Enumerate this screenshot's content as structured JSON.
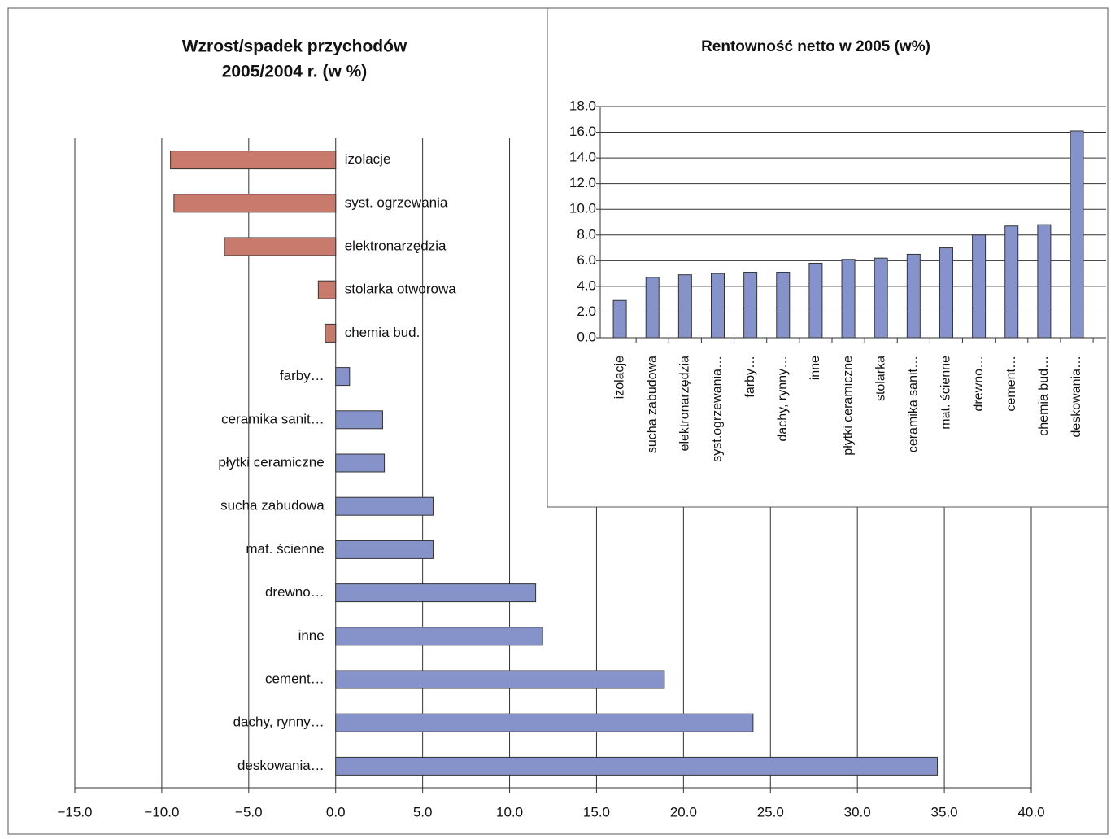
{
  "chart_data": [
    {
      "type": "hbar",
      "title": [
        "Wzrost/spadek przychodów",
        "2005/2004 r. (w %)"
      ],
      "categories": [
        "izolacje",
        "syst. ogrzewania",
        "elektronarzędzia",
        "stolarka otworowa",
        "chemia bud.",
        "farby…",
        "ceramika sanit…",
        "płytki ceramiczne",
        "sucha zabudowa",
        "mat. ścienne",
        "drewno…",
        "inne",
        "cement…",
        "dachy, rynny…",
        "deskowania…"
      ],
      "values": [
        -9.5,
        -9.3,
        -6.4,
        -1.0,
        -0.6,
        0.8,
        2.7,
        2.8,
        5.6,
        5.6,
        11.5,
        11.9,
        18.9,
        24.0,
        34.6
      ],
      "color": "#8693cb",
      "negative_color": "#c87a6c",
      "xlim": [
        -15,
        40
      ],
      "xticks": [
        {
          "value": -15,
          "label": "−15.0"
        },
        {
          "value": -10,
          "label": "−10.0"
        },
        {
          "value": -5,
          "label": "−5.0"
        },
        {
          "value": 0,
          "label": "0.0"
        },
        {
          "value": 5,
          "label": "5.0"
        },
        {
          "value": 10,
          "label": "10.0"
        },
        {
          "value": 15,
          "label": "15.0"
        },
        {
          "value": 20,
          "label": "20.0"
        },
        {
          "value": 25,
          "label": "25.0"
        },
        {
          "value": 30,
          "label": "30.0"
        },
        {
          "value": 35,
          "label": "35.0"
        },
        {
          "value": 40,
          "label": "40.0"
        }
      ],
      "grid": true
    },
    {
      "type": "bar",
      "title": [
        "Rentowność netto w 2005 (w%)"
      ],
      "categories": [
        "izolacje",
        "sucha zabudowa",
        "elektronarzędzia",
        "syst.ogrzewania…",
        "farby…",
        "dachy, rynny…",
        "inne",
        "płytki ceramiczne",
        "stolarka",
        "ceramika sanit…",
        "mat. ścienne",
        "drewno…",
        "cement…",
        "chemia bud…",
        "deskowania…"
      ],
      "values": [
        2.9,
        4.7,
        4.9,
        5.0,
        5.1,
        5.1,
        5.8,
        6.1,
        6.2,
        6.5,
        7.0,
        8.0,
        8.7,
        8.8,
        16.1
      ],
      "color": "#8693cb",
      "ylim": [
        0,
        18
      ],
      "yticks": [
        {
          "value": 0,
          "label": "0.0"
        },
        {
          "value": 2,
          "label": "2.0"
        },
        {
          "value": 4,
          "label": "4.0"
        },
        {
          "value": 6,
          "label": "6.0"
        },
        {
          "value": 8,
          "label": "8.0"
        },
        {
          "value": 10,
          "label": "10.0"
        },
        {
          "value": 12,
          "label": "12.0"
        },
        {
          "value": 14,
          "label": "14.0"
        },
        {
          "value": 16,
          "label": "16.0"
        },
        {
          "value": 18,
          "label": "18.0"
        }
      ],
      "grid": true
    }
  ]
}
